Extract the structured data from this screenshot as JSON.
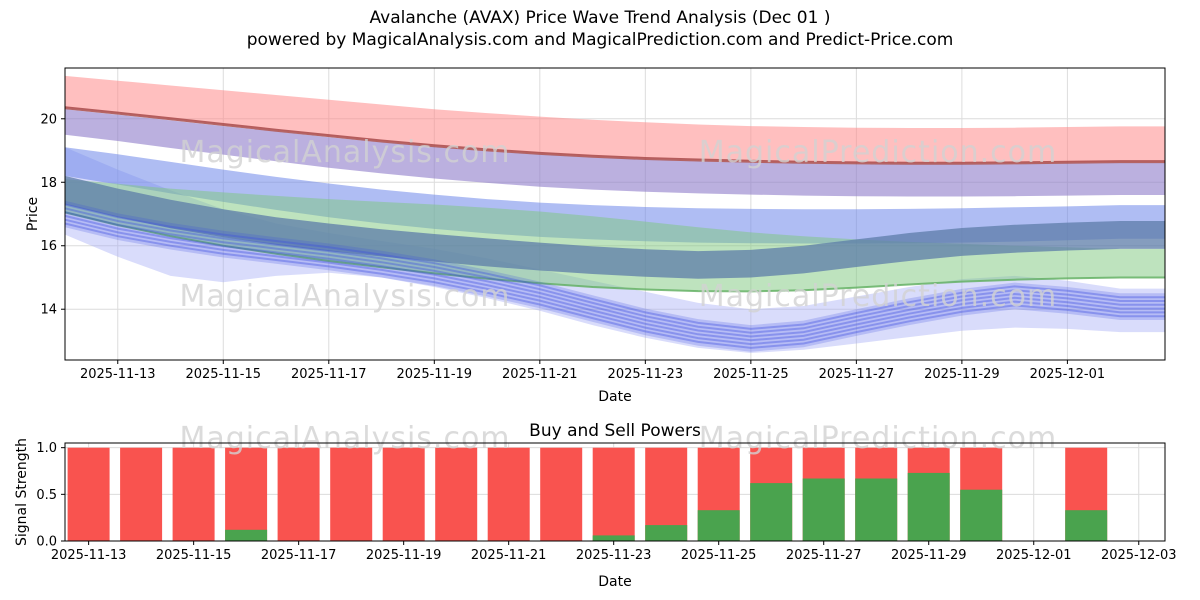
{
  "page": {
    "title": "Avalanche (AVAX) Price Wave Trend Analysis (Dec 01 )",
    "subtitle": "powered by MagicalAnalysis.com and MagicalPrediction.com and Predict-Price.com"
  },
  "watermark": {
    "texts": [
      "MagicalAnalysis.com",
      "MagicalPrediction.com"
    ],
    "color": "#d2d2d2"
  },
  "chart_data": [
    {
      "id": "price-wave-trend",
      "type": "area",
      "ylabel": "Price",
      "xlabel": "Date",
      "ylim": [
        12.4,
        21.6
      ],
      "yticks": [
        14,
        16,
        18,
        20
      ],
      "x_extend": 20.85,
      "dates": [
        "2025-11-12",
        "2025-11-13",
        "2025-11-14",
        "2025-11-15",
        "2025-11-16",
        "2025-11-17",
        "2025-11-18",
        "2025-11-19",
        "2025-11-20",
        "2025-11-21",
        "2025-11-22",
        "2025-11-23",
        "2025-11-24",
        "2025-11-25",
        "2025-11-26",
        "2025-11-27",
        "2025-11-28",
        "2025-11-29",
        "2025-11-30",
        "2025-12-01",
        "2025-12-02"
      ],
      "xtick_t": [
        1,
        3,
        5,
        7,
        9,
        11,
        13,
        15,
        17,
        19
      ],
      "xtick_labels": [
        "2025-11-13",
        "2025-11-15",
        "2025-11-17",
        "2025-11-19",
        "2025-11-21",
        "2025-11-23",
        "2025-11-25",
        "2025-11-27",
        "2025-11-29",
        "2025-12-01"
      ],
      "bands": [
        {
          "name": "light-blue-wide",
          "color": "#9fa8f5",
          "opacity": 0.4,
          "upper": [
            19.1,
            18.4,
            17.75,
            17.15,
            16.7,
            16.4,
            16.15,
            15.9,
            15.6,
            15.25,
            14.9,
            14.55,
            14.2,
            14.0,
            14.1,
            14.4,
            14.7,
            14.95,
            15.05,
            14.9,
            14.65
          ],
          "lower": [
            16.35,
            15.65,
            15.05,
            14.85,
            15.05,
            15.15,
            15.0,
            14.7,
            14.35,
            13.95,
            13.5,
            13.1,
            12.78,
            12.62,
            12.72,
            12.92,
            13.12,
            13.32,
            13.42,
            13.38,
            13.28
          ]
        },
        {
          "name": "red-upper",
          "color": "#ff8a8a",
          "opacity": 0.55,
          "upper": [
            21.35,
            21.2,
            21.05,
            20.9,
            20.75,
            20.6,
            20.45,
            20.3,
            20.18,
            20.07,
            19.97,
            19.89,
            19.82,
            19.77,
            19.74,
            19.72,
            19.71,
            19.71,
            19.72,
            19.74,
            19.76
          ],
          "lower": [
            20.35,
            20.18,
            20.0,
            19.82,
            19.64,
            19.47,
            19.3,
            19.15,
            19.02,
            18.91,
            18.82,
            18.75,
            18.7,
            18.66,
            18.63,
            18.61,
            18.6,
            18.6,
            18.61,
            18.63,
            18.65
          ]
        },
        {
          "name": "purple",
          "color": "#8d7cc9",
          "opacity": 0.6,
          "upper": [
            20.3,
            20.13,
            19.95,
            19.77,
            19.6,
            19.42,
            19.26,
            19.11,
            18.98,
            18.87,
            18.78,
            18.71,
            18.66,
            18.62,
            18.59,
            18.57,
            18.56,
            18.56,
            18.57,
            18.59,
            18.61
          ],
          "lower": [
            19.5,
            19.3,
            19.08,
            18.87,
            18.66,
            18.46,
            18.28,
            18.12,
            17.98,
            17.86,
            17.77,
            17.7,
            17.65,
            17.61,
            17.58,
            17.56,
            17.55,
            17.55,
            17.56,
            17.58,
            17.6
          ]
        },
        {
          "name": "blue-medium",
          "color": "#6e86ea",
          "opacity": 0.55,
          "upper": [
            19.1,
            18.88,
            18.64,
            18.4,
            18.17,
            17.96,
            17.77,
            17.61,
            17.47,
            17.36,
            17.28,
            17.22,
            17.18,
            17.16,
            17.15,
            17.15,
            17.16,
            17.18,
            17.21,
            17.24,
            17.28
          ],
          "lower": [
            18.2,
            17.93,
            17.65,
            17.38,
            17.13,
            16.9,
            16.7,
            16.53,
            16.39,
            16.28,
            16.2,
            16.14,
            16.1,
            16.08,
            16.07,
            16.07,
            16.08,
            16.1,
            16.13,
            16.17,
            16.22
          ]
        },
        {
          "name": "green",
          "color": "#7ec87e",
          "opacity": 0.5,
          "upper": [
            18.1,
            17.95,
            17.8,
            17.68,
            17.57,
            17.47,
            17.38,
            17.3,
            17.2,
            17.08,
            16.93,
            16.76,
            16.58,
            16.42,
            16.3,
            16.2,
            16.12,
            16.06,
            16.0,
            15.95,
            15.9
          ],
          "lower": [
            17.05,
            16.65,
            16.3,
            16.0,
            15.75,
            15.52,
            15.32,
            15.13,
            14.96,
            14.82,
            14.7,
            14.62,
            14.57,
            14.56,
            14.6,
            14.68,
            14.78,
            14.87,
            14.93,
            14.97,
            15.0
          ]
        },
        {
          "name": "steel",
          "color": "#5c7ca8",
          "opacity": 0.75,
          "upper": [
            18.2,
            17.8,
            17.45,
            17.15,
            16.9,
            16.7,
            16.52,
            16.37,
            16.23,
            16.1,
            15.98,
            15.89,
            15.83,
            15.87,
            16.0,
            16.2,
            16.4,
            16.56,
            16.66,
            16.73,
            16.78
          ],
          "lower": [
            17.3,
            16.9,
            16.55,
            16.27,
            16.03,
            15.83,
            15.66,
            15.5,
            15.35,
            15.22,
            15.11,
            15.02,
            14.96,
            15.0,
            15.13,
            15.33,
            15.52,
            15.68,
            15.78,
            15.85,
            15.9
          ]
        }
      ],
      "edge_lines": [
        {
          "name": "dark-red-edge",
          "color": "#a84a4a",
          "width": 3,
          "opacity": 0.85,
          "values": [
            20.35,
            20.18,
            20.0,
            19.82,
            19.64,
            19.47,
            19.3,
            19.15,
            19.02,
            18.91,
            18.82,
            18.75,
            18.7,
            18.66,
            18.63,
            18.61,
            18.6,
            18.6,
            18.61,
            18.63,
            18.65
          ]
        },
        {
          "name": "green-edge",
          "color": "#5fae5f",
          "width": 2,
          "opacity": 0.8,
          "values": [
            17.05,
            16.65,
            16.3,
            16.0,
            15.75,
            15.52,
            15.32,
            15.13,
            14.96,
            14.82,
            14.7,
            14.62,
            14.57,
            14.56,
            14.6,
            14.68,
            14.78,
            14.87,
            14.93,
            14.97,
            15.0
          ]
        }
      ],
      "line_bundles": [
        {
          "name": "blue-price-lines",
          "color": "#3d4fe0",
          "line_width": 2,
          "line_opacity": 0.38,
          "offsets": [
            -0.3,
            -0.18,
            -0.06,
            0.06,
            0.18,
            0.3
          ],
          "halfwidth": 0.42,
          "band_opacity": 0.22,
          "center": [
            17.0,
            16.6,
            16.3,
            16.05,
            15.85,
            15.65,
            15.42,
            15.15,
            14.82,
            14.45,
            14.02,
            13.6,
            13.27,
            13.08,
            13.22,
            13.58,
            13.92,
            14.22,
            14.42,
            14.28,
            14.08
          ]
        }
      ]
    },
    {
      "id": "buy-sell-powers",
      "type": "bar",
      "title": "Buy and Sell Powers",
      "ylabel": "Signal Strength",
      "xlabel": "Date",
      "ylim": [
        0,
        1.05
      ],
      "xlim": [
        -0.45,
        20.5
      ],
      "ytick_values": [
        0,
        0.5,
        1.0
      ],
      "ytick_labels": [
        "0.0",
        "0.5",
        "1.0"
      ],
      "xtick_t": [
        0,
        2,
        4,
        6,
        8,
        10,
        12,
        14,
        16,
        18,
        20
      ],
      "xtick_labels": [
        "2025-11-13",
        "2025-11-15",
        "2025-11-17",
        "2025-11-19",
        "2025-11-21",
        "2025-11-23",
        "2025-11-25",
        "2025-11-27",
        "2025-11-29",
        "2025-12-01",
        "2025-12-03"
      ],
      "bar_width": 0.8,
      "colors": {
        "sell": "#f9534f",
        "buy": "#4aa34e"
      },
      "bars": [
        {
          "date": "2025-11-13",
          "t": 0,
          "sell": 1.0,
          "buy": 0
        },
        {
          "date": "2025-11-14",
          "t": 1,
          "sell": 1.0,
          "buy": 0
        },
        {
          "date": "2025-11-15",
          "t": 2,
          "sell": 1.0,
          "buy": 0
        },
        {
          "date": "2025-11-16",
          "t": 3,
          "sell": 1.0,
          "buy": 0.12
        },
        {
          "date": "2025-11-17",
          "t": 4,
          "sell": 1.0,
          "buy": 0
        },
        {
          "date": "2025-11-18",
          "t": 5,
          "sell": 1.0,
          "buy": 0
        },
        {
          "date": "2025-11-19",
          "t": 6,
          "sell": 1.0,
          "buy": 0
        },
        {
          "date": "2025-11-20",
          "t": 7,
          "sell": 1.0,
          "buy": 0
        },
        {
          "date": "2025-11-21",
          "t": 8,
          "sell": 1.0,
          "buy": 0
        },
        {
          "date": "2025-11-22",
          "t": 9,
          "sell": 1.0,
          "buy": 0
        },
        {
          "date": "2025-11-23",
          "t": 10,
          "sell": 1.0,
          "buy": 0.06
        },
        {
          "date": "2025-11-24",
          "t": 11,
          "sell": 1.0,
          "buy": 0.17
        },
        {
          "date": "2025-11-25",
          "t": 12,
          "sell": 1.0,
          "buy": 0.33
        },
        {
          "date": "2025-11-26",
          "t": 13,
          "sell": 1.0,
          "buy": 0.62
        },
        {
          "date": "2025-11-27",
          "t": 14,
          "sell": 1.0,
          "buy": 0.67
        },
        {
          "date": "2025-11-28",
          "t": 15,
          "sell": 1.0,
          "buy": 0.67
        },
        {
          "date": "2025-11-29",
          "t": 16,
          "sell": 1.0,
          "buy": 0.73
        },
        {
          "date": "2025-11-30",
          "t": 17,
          "sell": 1.0,
          "buy": 0.55
        },
        {
          "date": "2025-12-02",
          "t": 19,
          "sell": 1.0,
          "buy": 0.33
        }
      ]
    }
  ]
}
